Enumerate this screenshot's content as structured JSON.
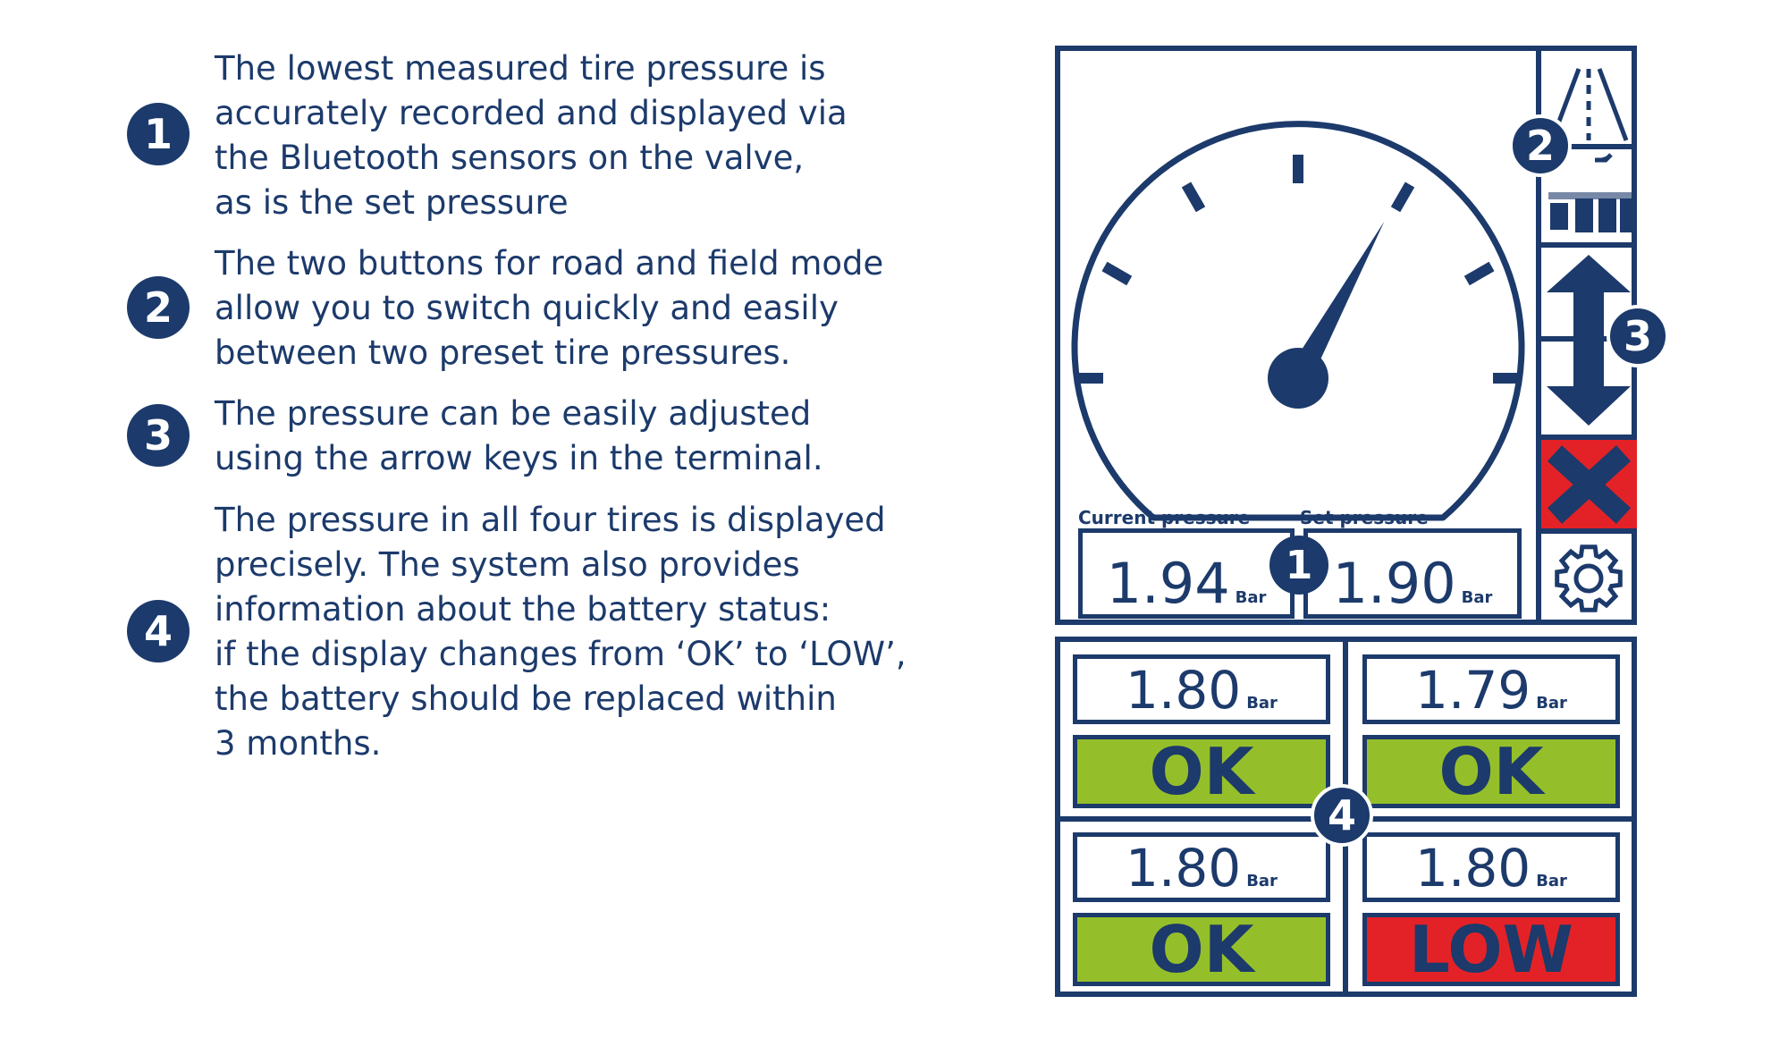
{
  "items": [
    {
      "number": "1",
      "text": "The lowest measured tire pressure is\naccurately recorded and displayed via\nthe Bluetooth sensors on the valve,\nas is the set pressure"
    },
    {
      "number": "2",
      "text": "The two buttons for road and field mode\nallow you to switch quickly and easily\nbetween two preset tire pressures."
    },
    {
      "number": "3",
      "text": "The pressure can be easily adjusted\nusing the arrow keys in the terminal."
    },
    {
      "number": "4",
      "text": "The pressure in all four tires is displayed\nprecisely. The system also provides\n information about the battery status:\nif the display changes from ‘OK’ to ‘LOW’,\n the battery should be replaced within\n3 months."
    }
  ],
  "terminal": {
    "current_label": "Current pressure",
    "current_value": "1.94",
    "set_label": "Set pressure",
    "set_value": "1.90",
    "unit": "Bar",
    "gauge_level": 0.62,
    "tires": [
      {
        "value": "1.80",
        "status": "OK",
        "color": "#95bf2a"
      },
      {
        "value": "1.79",
        "status": "OK",
        "color": "#95bf2a"
      },
      {
        "value": "1.80",
        "status": "OK",
        "color": "#95bf2a"
      },
      {
        "value": "1.80",
        "status": "LOW",
        "color": "#e32227"
      }
    ],
    "buttons": [
      "road-mode-icon",
      "field-mode-icon",
      "arrow-up-icon",
      "arrow-down-icon",
      "cancel-x-icon",
      "gear-icon"
    ]
  },
  "colors": {
    "navy": "#1c3a6b",
    "green": "#95bf2a",
    "red": "#e32227"
  }
}
